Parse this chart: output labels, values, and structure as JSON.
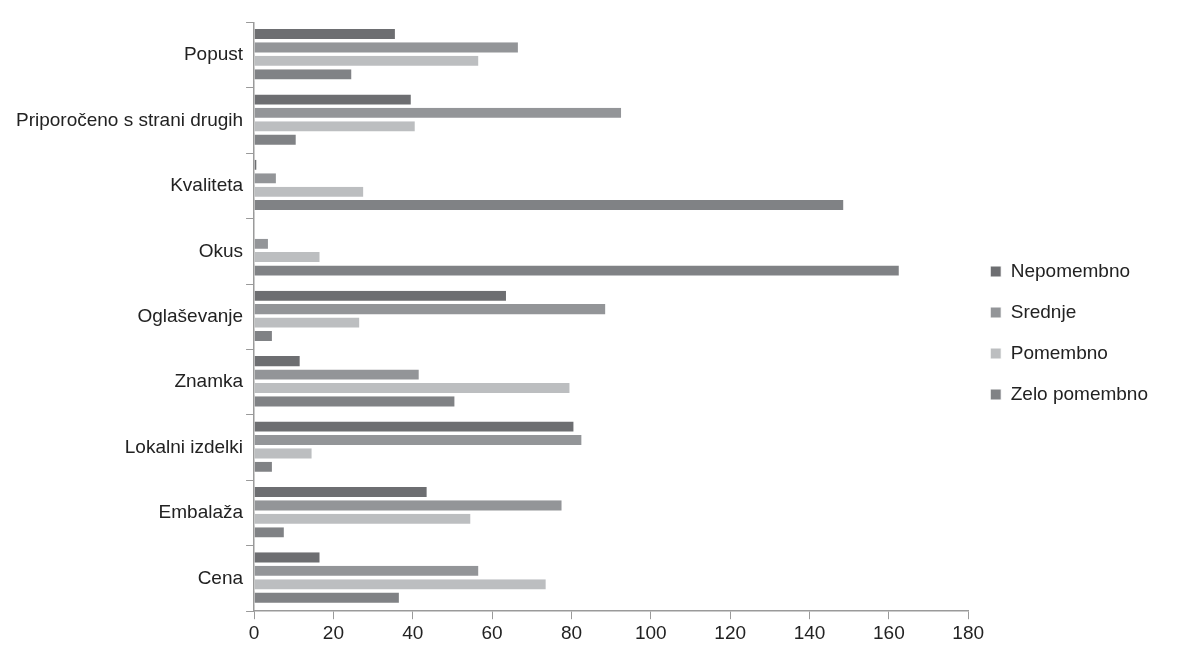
{
  "chart_data": {
    "type": "bar",
    "orientation": "horizontal",
    "categories": [
      "Popust",
      "Priporočeno s strani drugih",
      "Kvaliteta",
      "Okus",
      "Oglaševanje",
      "Znamka",
      "Lokalni izdelki",
      "Embalaža",
      "Cena"
    ],
    "series": [
      {
        "name": "Nepomembno",
        "color": "#6d6e71",
        "values": [
          36,
          40,
          1,
          0,
          64,
          12,
          81,
          44,
          17
        ]
      },
      {
        "name": "Srednje",
        "color": "#939598",
        "values": [
          67,
          93,
          6,
          4,
          89,
          42,
          83,
          78,
          57
        ]
      },
      {
        "name": "Pomembno",
        "color": "#bcbec0",
        "values": [
          57,
          41,
          28,
          17,
          27,
          80,
          15,
          55,
          74
        ]
      },
      {
        "name": "Zelo pomembno",
        "color": "#808285",
        "values": [
          25,
          11,
          149,
          163,
          5,
          51,
          5,
          8,
          37
        ]
      }
    ],
    "xlim": [
      0,
      180
    ],
    "xticks": [
      0,
      20,
      40,
      60,
      80,
      100,
      120,
      140,
      160,
      180
    ],
    "grid": false,
    "legend": "right"
  }
}
